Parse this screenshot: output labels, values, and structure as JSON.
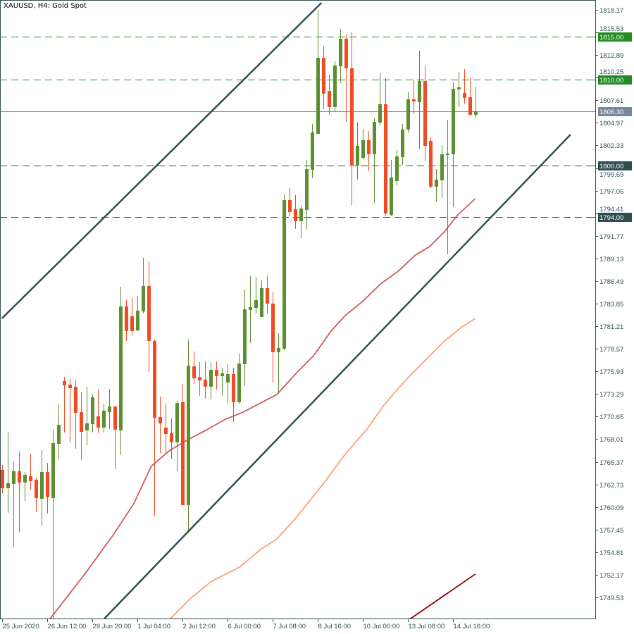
{
  "title": "XAUUSD, H4:  Gold Spot",
  "chart_data": {
    "type": "candlestick",
    "symbol": "XAUUSD",
    "timeframe": "H4",
    "description": "Gold Spot",
    "colors": {
      "bull": "#5B8F2F",
      "bear": "#F24B23",
      "axis": "#2F4F4F",
      "ma_fast": "#CD5C5C",
      "ma_mid": "#FFA07A",
      "ma_slow": "#8B0000",
      "channel": "#2F4F4F"
    },
    "ylim": [
      1748.3,
      1819.3
    ],
    "y_ticks": [
      "1818.17",
      "1815.53",
      "1812.89",
      "1810.25",
      "1807.61",
      "1804.97",
      "1802.33",
      "1799.69",
      "1797.05",
      "1794.41",
      "1791.77",
      "1789.13",
      "1786.49",
      "1783.85",
      "1781.21",
      "1778.57",
      "1775.93",
      "1773.29",
      "1770.65",
      "1768.01",
      "1765.37",
      "1762.73",
      "1760.09",
      "1757.45",
      "1754.81",
      "1752.17",
      "1749.53"
    ],
    "x_ticks": [
      {
        "candle": 0,
        "label": "25 Jun 2020"
      },
      {
        "candle": 8,
        "label": "26 Jun 12:00"
      },
      {
        "candle": 16,
        "label": "29 Jun 20:00"
      },
      {
        "candle": 24,
        "label": "1 Jul 04:00"
      },
      {
        "candle": 32,
        "label": "2 Jul 12:00"
      },
      {
        "candle": 40,
        "label": "6 Jul 00:00"
      },
      {
        "candle": 48,
        "label": "7 Jul 08:00"
      },
      {
        "candle": 56,
        "label": "8 Jul 16:00"
      },
      {
        "candle": 64,
        "label": "10 Jul 00:00"
      },
      {
        "candle": 72,
        "label": "13 Jul 08:00"
      },
      {
        "candle": 80,
        "label": "14 Jul 16:00"
      }
    ],
    "candles_ohlc": [
      [
        1764.43,
        1765.0,
        1761.71,
        1762.29
      ],
      [
        1762.29,
        1768.87,
        1759.41,
        1762.86
      ],
      [
        1762.78,
        1765.41,
        1755.37,
        1764.26
      ],
      [
        1764.26,
        1766.57,
        1757.18,
        1762.94
      ],
      [
        1762.94,
        1764.18,
        1760.8,
        1763.85
      ],
      [
        1763.69,
        1766.32,
        1762.12,
        1763.11
      ],
      [
        1763.27,
        1763.52,
        1759.49,
        1761.13
      ],
      [
        1761.05,
        1766.73,
        1757.92,
        1764.18
      ],
      [
        1764.18,
        1765.25,
        1759.32,
        1761.22
      ],
      [
        1761.13,
        1769.12,
        1746.9,
        1767.55
      ],
      [
        1767.47,
        1772.08,
        1765.74,
        1769.69
      ],
      [
        1774.8,
        1775.29,
        1768.79,
        1774.3
      ],
      [
        1774.38,
        1775.04,
        1767.64,
        1773.97
      ],
      [
        1774.14,
        1774.96,
        1766.89,
        1771.09
      ],
      [
        1771.17,
        1773.48,
        1765.58,
        1768.87
      ],
      [
        1769.03,
        1774.14,
        1767.31,
        1769.86
      ],
      [
        1769.78,
        1773.23,
        1768.79,
        1772.9
      ],
      [
        1770.68,
        1773.81,
        1768.71,
        1769.36
      ],
      [
        1769.36,
        1772.16,
        1768.79,
        1771.34
      ],
      [
        1771.17,
        1773.89,
        1769.2,
        1771.83
      ],
      [
        1771.83,
        1771.92,
        1764.51,
        1769.12
      ],
      [
        1769.03,
        1785.82,
        1766.15,
        1783.52
      ],
      [
        1783.52,
        1784.26,
        1779.49,
        1780.64
      ],
      [
        1782.37,
        1784.51,
        1780.15,
        1780.64
      ],
      [
        1780.72,
        1784.67,
        1780.64,
        1783.03
      ],
      [
        1782.94,
        1789.2,
        1782.7,
        1785.91
      ],
      [
        1785.91,
        1788.79,
        1775.87,
        1779.49
      ],
      [
        1779.49,
        1779.65,
        1758.99,
        1770.52
      ],
      [
        1770.6,
        1772.99,
        1766.4,
        1769.86
      ],
      [
        1769.36,
        1772.16,
        1766.4,
        1768.62
      ],
      [
        1768.71,
        1770.43,
        1765.66,
        1767.64
      ],
      [
        1767.64,
        1772.49,
        1764.26,
        1772.24
      ],
      [
        1772.33,
        1774.47,
        1760.31,
        1760.31
      ],
      [
        1760.31,
        1779.65,
        1757.35,
        1776.61
      ],
      [
        1776.52,
        1778.25,
        1774.47,
        1775.12
      ],
      [
        1775.29,
        1777.02,
        1773.07,
        1774.88
      ],
      [
        1774.96,
        1777.1,
        1772.74,
        1774.14
      ],
      [
        1774.14,
        1776.94,
        1772.66,
        1776.11
      ],
      [
        1776.11,
        1777.1,
        1773.81,
        1775.37
      ],
      [
        1775.37,
        1776.36,
        1773.07,
        1775.7
      ],
      [
        1774.63,
        1776.77,
        1772.16,
        1775.62
      ],
      [
        1775.62,
        1776.36,
        1770.02,
        1772.33
      ],
      [
        1772.33,
        1778.01,
        1772.16,
        1776.85
      ],
      [
        1776.77,
        1785.49,
        1774.22,
        1783.19
      ],
      [
        1783.11,
        1787.06,
        1779.24,
        1783.44
      ],
      [
        1783.35,
        1786.98,
        1782.61,
        1784.26
      ],
      [
        1782.28,
        1786.56,
        1782.28,
        1785.66
      ],
      [
        1785.66,
        1787.14,
        1782.7,
        1783.85
      ],
      [
        1783.85,
        1785.25,
        1774.63,
        1778.17
      ],
      [
        1778.17,
        1780.39,
        1773.4,
        1778.66
      ],
      [
        1778.58,
        1796.61,
        1778.42,
        1795.95
      ],
      [
        1795.95,
        1797.35,
        1794.05,
        1794.55
      ],
      [
        1794.88,
        1796.52,
        1792.57,
        1793.48
      ],
      [
        1793.48,
        1795.29,
        1791.5,
        1794.96
      ],
      [
        1794.79,
        1800.64,
        1792.57,
        1799.57
      ],
      [
        1799.49,
        1804.84,
        1798.5,
        1803.85
      ],
      [
        1803.68,
        1818.17,
        1803.68,
        1812.57
      ],
      [
        1812.57,
        1813.89,
        1806.56,
        1808.37
      ],
      [
        1808.7,
        1810.6,
        1805.91,
        1806.81
      ],
      [
        1806.81,
        1812.16,
        1806.23,
        1811.67
      ],
      [
        1811.58,
        1815.95,
        1809.61,
        1814.79
      ],
      [
        1814.79,
        1815.29,
        1805.08,
        1811.34
      ],
      [
        1811.34,
        1815.53,
        1795.37,
        1800.06
      ],
      [
        1799.98,
        1805.0,
        1798.33,
        1802.28
      ],
      [
        1800.88,
        1804.26,
        1800.72,
        1802.94
      ],
      [
        1802.94,
        1804.01,
        1799.32,
        1801.3
      ],
      [
        1801.3,
        1805.49,
        1795.62,
        1805.08
      ],
      [
        1805.0,
        1810.76,
        1804.67,
        1807.14
      ],
      [
        1807.14,
        1810.18,
        1794.05,
        1794.38
      ],
      [
        1794.22,
        1800.64,
        1794.05,
        1798.58
      ],
      [
        1798.17,
        1801.79,
        1797.59,
        1801.05
      ],
      [
        1800.97,
        1804.84,
        1800.06,
        1804.18
      ],
      [
        1804.18,
        1808.54,
        1803.85,
        1807.72
      ],
      [
        1807.72,
        1809.94,
        1805.99,
        1807.47
      ],
      [
        1807.39,
        1813.39,
        1801.95,
        1809.86
      ],
      [
        1809.86,
        1811.67,
        1800.47,
        1802.28
      ],
      [
        1802.86,
        1803.27,
        1797.35,
        1797.51
      ],
      [
        1797.51,
        1799.57,
        1795.78,
        1798.33
      ],
      [
        1798.25,
        1802.37,
        1796.19,
        1801.3
      ],
      [
        1801.21,
        1805.33,
        1789.61,
        1801.38
      ],
      [
        1801.3,
        1809.69,
        1795.12,
        1808.95
      ],
      [
        1808.87,
        1810.93,
        1806.81,
        1809.11
      ],
      [
        1808.46,
        1811.25,
        1807.22,
        1807.88
      ],
      [
        1807.96,
        1810.18,
        1805.82,
        1805.91
      ],
      [
        1805.91,
        1809.2,
        1805.58,
        1806.32
      ]
    ],
    "moving_averages": [
      {
        "color": "#CD5C5C",
        "points": [
          [
            8.4,
            1746.9
          ],
          [
            14.7,
            1752.25
          ],
          [
            19.7,
            1756.77
          ],
          [
            23.4,
            1760.48
          ],
          [
            26.5,
            1764.84
          ],
          [
            29.7,
            1766.65
          ],
          [
            32.8,
            1767.88
          ],
          [
            35.9,
            1768.95
          ],
          [
            39.7,
            1770.35
          ],
          [
            42.8,
            1771.17
          ],
          [
            45.9,
            1772.24
          ],
          [
            48.8,
            1773.23
          ],
          [
            52.2,
            1775.7
          ],
          [
            55.3,
            1777.76
          ],
          [
            58.4,
            1780.64
          ],
          [
            60.9,
            1782.45
          ],
          [
            64.0,
            1784.1
          ],
          [
            67.2,
            1786.15
          ],
          [
            70.3,
            1787.63
          ],
          [
            73.4,
            1789.53
          ],
          [
            75.9,
            1790.51
          ],
          [
            78.4,
            1792.16
          ],
          [
            80.9,
            1794.22
          ],
          [
            84.0,
            1796.11
          ]
        ]
      },
      {
        "color": "#FFA07A",
        "points": [
          [
            29.7,
            1746.9
          ],
          [
            33.4,
            1749.36
          ],
          [
            37.2,
            1751.42
          ],
          [
            42.2,
            1753.07
          ],
          [
            45.9,
            1755.13
          ],
          [
            48.8,
            1756.36
          ],
          [
            52.2,
            1758.83
          ],
          [
            57.2,
            1762.94
          ],
          [
            60.9,
            1766.24
          ],
          [
            64.7,
            1769.12
          ],
          [
            67.8,
            1772.0
          ],
          [
            71.6,
            1774.88
          ],
          [
            75.3,
            1777.35
          ],
          [
            78.4,
            1779.4
          ],
          [
            81.5,
            1781.05
          ],
          [
            84.0,
            1782.12
          ]
        ]
      },
      {
        "color": "#8B0000",
        "points": [
          [
            72.2,
            1746.9
          ],
          [
            84.0,
            1752.25
          ]
        ]
      }
    ],
    "trend_lines": [
      {
        "color": "#2F4F4F",
        "from": [
          0.0,
          1782.12
        ],
        "to": [
          56.7,
          1818.99
        ]
      },
      {
        "color": "#2F4F4F",
        "from": [
          18.2,
          1747.06
        ],
        "to": [
          100.9,
          1803.6
        ]
      }
    ],
    "horizontal_lines": [
      {
        "price": 1815.0,
        "label": "1815.00",
        "color": "#228B22",
        "style": "dashed"
      },
      {
        "price": 1810.0,
        "label": "1810.00",
        "color": "#228B22",
        "style": "dashed"
      },
      {
        "price": 1806.3,
        "label": "1806.30",
        "color": "#778899",
        "style": "solid"
      },
      {
        "price": 1800.0,
        "label": "1800.00",
        "color": "#2F4F4F",
        "style": "dashed"
      },
      {
        "price": 1794.0,
        "label": "1794.00",
        "color": "#2F4F4F",
        "style": "dashed"
      }
    ]
  }
}
